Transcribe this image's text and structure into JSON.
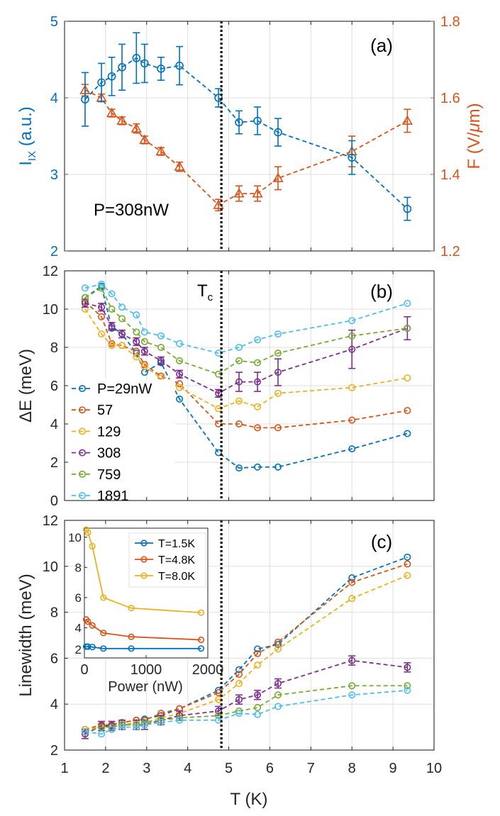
{
  "colors": {
    "blue": "#0072BD",
    "orange": "#D95319",
    "yellow": "#EDB120",
    "purple": "#7E2F8E",
    "green": "#77AC30",
    "cyan": "#4DBEEE",
    "axis": "#262626",
    "grid": "#DFDFDF"
  },
  "chart_data": [
    {
      "id": "a",
      "type": "line",
      "panel_label": "(a)",
      "annotation": "P=308nW",
      "xlim": [
        1,
        10
      ],
      "ylim": [
        2,
        5
      ],
      "yticks": [
        2,
        3,
        4,
        5
      ],
      "y2lim": [
        1.2,
        1.8
      ],
      "y2ticks": [
        1.2,
        1.4,
        1.6,
        1.8
      ],
      "ylabel_main": "I",
      "ylabel_sub": "IX",
      "ylabel_unit": " (a.u.)",
      "y2label_main": "F (V/",
      "y2label_mu": "μ",
      "y2label_end": "m)",
      "grid": true,
      "series": [
        {
          "name": "I_IX",
          "axis": "left",
          "color": "blue",
          "marker": "circle",
          "x": [
            1.5,
            1.9,
            2.15,
            2.4,
            2.75,
            2.95,
            3.35,
            3.8,
            4.75,
            5.25,
            5.7,
            6.2,
            8.0,
            9.35
          ],
          "y": [
            3.98,
            4.2,
            4.28,
            4.4,
            4.52,
            4.45,
            4.38,
            4.42,
            4.0,
            3.68,
            3.7,
            3.55,
            3.22,
            2.55
          ],
          "err": [
            0.35,
            0.25,
            0.25,
            0.3,
            0.33,
            0.25,
            0.15,
            0.25,
            0.12,
            0.15,
            0.18,
            0.18,
            0.22,
            0.15
          ]
        },
        {
          "name": "F",
          "axis": "right",
          "color": "orange",
          "marker": "triangle",
          "x": [
            1.5,
            1.9,
            2.15,
            2.4,
            2.75,
            2.95,
            3.35,
            3.8,
            4.75,
            5.25,
            5.7,
            6.2,
            8.0,
            9.35
          ],
          "y": [
            1.62,
            1.6,
            1.56,
            1.54,
            1.52,
            1.49,
            1.46,
            1.42,
            1.32,
            1.35,
            1.35,
            1.39,
            1.46,
            1.54
          ],
          "err": [
            0.015,
            0.01,
            0.01,
            0.01,
            0.012,
            0.01,
            0.01,
            0.012,
            0.015,
            0.02,
            0.02,
            0.03,
            0.04,
            0.03
          ]
        }
      ]
    },
    {
      "id": "b",
      "type": "line",
      "panel_label": "(b)",
      "tc_main": "T",
      "tc_sub": "c",
      "xlim": [
        1,
        10
      ],
      "ylim": [
        0,
        12
      ],
      "yticks": [
        0,
        2,
        4,
        6,
        8,
        10,
        12
      ],
      "ylabel": "ΔE (meV)",
      "grid": true,
      "legend_position": "bottom-left",
      "series": [
        {
          "name": "P=29nW",
          "color": "blue",
          "x": [
            1.5,
            1.9,
            2.15,
            2.4,
            2.75,
            2.95,
            3.35,
            3.8,
            4.75,
            5.25,
            5.7,
            6.2,
            8.0,
            9.35
          ],
          "y": [
            10.6,
            11.2,
            9.0,
            8.7,
            7.7,
            6.7,
            7.2,
            5.3,
            2.5,
            1.7,
            1.75,
            1.75,
            2.7,
            3.5
          ],
          "err": [
            0,
            0,
            0,
            0,
            0,
            0,
            0,
            0,
            0,
            0,
            0,
            0,
            0,
            0
          ]
        },
        {
          "name": " 57",
          "color": "orange",
          "x": [
            1.5,
            1.9,
            2.15,
            2.4,
            2.75,
            2.95,
            3.35,
            3.8,
            4.75,
            5.25,
            5.7,
            6.2,
            8.0,
            9.35
          ],
          "y": [
            10.4,
            9.6,
            8.2,
            8.1,
            7.8,
            7.1,
            6.5,
            6.1,
            4.0,
            4.0,
            3.8,
            3.8,
            4.2,
            4.7
          ],
          "err": [
            0,
            0,
            0,
            0,
            0,
            0,
            0,
            0,
            0,
            0,
            0,
            0,
            0,
            0
          ]
        },
        {
          "name": "129",
          "color": "yellow",
          "x": [
            1.5,
            1.9,
            2.15,
            2.4,
            2.75,
            2.95,
            3.35,
            3.8,
            4.75,
            5.25,
            5.7,
            6.2,
            8.0,
            9.35
          ],
          "y": [
            10.0,
            8.7,
            8.1,
            8.1,
            7.5,
            7.0,
            6.4,
            5.9,
            4.8,
            5.2,
            4.9,
            5.6,
            5.9,
            6.4
          ],
          "err": [
            0,
            0,
            0,
            0,
            0,
            0,
            0,
            0,
            0,
            0,
            0,
            0,
            0,
            0
          ]
        },
        {
          "name": "308",
          "color": "purple",
          "x": [
            1.5,
            1.9,
            2.15,
            2.4,
            2.75,
            2.95,
            3.35,
            3.8,
            4.75,
            5.25,
            5.7,
            6.2,
            8.0,
            9.35
          ],
          "y": [
            10.3,
            10.1,
            9.1,
            8.7,
            8.3,
            7.8,
            7.3,
            6.6,
            5.6,
            6.2,
            6.2,
            6.7,
            7.9,
            9.0
          ],
          "err": [
            0.2,
            0.2,
            0.2,
            0.2,
            0.2,
            0.2,
            0.2,
            0.2,
            0.2,
            0.5,
            0.5,
            0.7,
            1.0,
            0.6
          ]
        },
        {
          "name": "759",
          "color": "green",
          "x": [
            1.5,
            1.9,
            2.15,
            2.4,
            2.75,
            2.95,
            3.35,
            3.8,
            4.75,
            5.25,
            5.7,
            6.2,
            8.0,
            9.35
          ],
          "y": [
            10.6,
            11.1,
            10.0,
            9.5,
            8.8,
            8.3,
            8.0,
            7.3,
            6.6,
            7.3,
            7.2,
            7.7,
            8.6,
            9.0
          ],
          "err": [
            0,
            0,
            0,
            0,
            0,
            0,
            0,
            0,
            0,
            0,
            0,
            0,
            0,
            0
          ]
        },
        {
          "name": "1891",
          "color": "cyan",
          "x": [
            1.5,
            1.9,
            2.15,
            2.4,
            2.75,
            2.95,
            3.35,
            3.8,
            4.75,
            5.25,
            5.7,
            6.2,
            8.0,
            9.35
          ],
          "y": [
            11.1,
            11.3,
            10.8,
            10.1,
            9.7,
            8.8,
            8.6,
            8.2,
            7.7,
            8.0,
            8.4,
            8.7,
            9.4,
            10.3
          ],
          "err": [
            0,
            0,
            0,
            0,
            0,
            0,
            0,
            0,
            0,
            0,
            0,
            0,
            0,
            0
          ]
        }
      ]
    },
    {
      "id": "c",
      "type": "line",
      "panel_label": "(c)",
      "xlim": [
        1,
        10
      ],
      "xticks": [
        1,
        2,
        3,
        4,
        5,
        6,
        7,
        8,
        9,
        10
      ],
      "ylim": [
        2,
        12
      ],
      "yticks": [
        2,
        4,
        6,
        8,
        10,
        12
      ],
      "xlabel": "T (K)",
      "ylabel": "Linewidth (meV)",
      "grid": true,
      "series": [
        {
          "name": "P=29nW",
          "color": "blue",
          "x": [
            1.5,
            1.9,
            2.15,
            2.4,
            2.75,
            2.95,
            3.35,
            3.8,
            4.75,
            5.25,
            5.7,
            6.2,
            8.0,
            9.35
          ],
          "y": [
            2.8,
            3.0,
            3.1,
            3.2,
            3.3,
            3.35,
            3.5,
            3.8,
            4.6,
            5.5,
            6.4,
            6.6,
            9.5,
            10.4
          ],
          "err": [
            0,
            0,
            0,
            0,
            0,
            0,
            0,
            0,
            0,
            0,
            0,
            0,
            0,
            0
          ]
        },
        {
          "name": "57",
          "color": "orange",
          "x": [
            1.5,
            1.9,
            2.15,
            2.4,
            2.75,
            2.95,
            3.35,
            3.8,
            4.75,
            5.25,
            5.7,
            6.2,
            8.0,
            9.35
          ],
          "y": [
            2.9,
            3.1,
            3.1,
            3.2,
            3.3,
            3.3,
            3.6,
            3.8,
            4.5,
            5.3,
            6.2,
            6.7,
            9.3,
            10.1
          ],
          "err": [
            0,
            0,
            0,
            0,
            0,
            0,
            0,
            0,
            0,
            0,
            0,
            0,
            0,
            0
          ]
        },
        {
          "name": "129",
          "color": "yellow",
          "x": [
            1.5,
            1.9,
            2.15,
            2.4,
            2.75,
            2.95,
            3.35,
            3.8,
            4.75,
            5.25,
            5.7,
            6.2,
            8.0,
            9.35
          ],
          "y": [
            2.9,
            3.0,
            3.0,
            3.1,
            3.2,
            3.2,
            3.4,
            3.6,
            4.2,
            4.9,
            5.7,
            6.4,
            8.6,
            9.6
          ],
          "err": [
            0,
            0,
            0,
            0,
            0,
            0,
            0,
            0,
            0,
            0,
            0,
            0,
            0,
            0
          ]
        },
        {
          "name": "308",
          "color": "purple",
          "x": [
            1.5,
            1.9,
            2.15,
            2.4,
            2.75,
            2.95,
            3.35,
            3.8,
            4.75,
            5.25,
            5.7,
            6.2,
            8.0,
            9.35
          ],
          "y": [
            2.7,
            3.05,
            3.05,
            3.1,
            3.1,
            3.1,
            3.3,
            3.5,
            3.7,
            4.2,
            4.4,
            4.9,
            5.9,
            5.6
          ],
          "err": [
            0.2,
            0.2,
            0.2,
            0.2,
            0.2,
            0.2,
            0.2,
            0.2,
            0.2,
            0.2,
            0.2,
            0.2,
            0.2,
            0.2
          ]
        },
        {
          "name": "759",
          "color": "green",
          "x": [
            1.5,
            1.9,
            2.15,
            2.4,
            2.75,
            2.95,
            3.35,
            3.8,
            4.75,
            5.25,
            5.7,
            6.2,
            8.0,
            9.35
          ],
          "y": [
            2.8,
            3.0,
            3.0,
            3.1,
            3.1,
            3.2,
            3.3,
            3.4,
            3.5,
            3.7,
            3.85,
            4.4,
            4.8,
            4.8
          ],
          "err": [
            0,
            0,
            0,
            0,
            0,
            0,
            0,
            0,
            0,
            0,
            0,
            0,
            0,
            0
          ]
        },
        {
          "name": "1891",
          "color": "cyan",
          "x": [
            1.5,
            1.9,
            2.15,
            2.4,
            2.75,
            2.95,
            3.35,
            3.8,
            4.75,
            5.25,
            5.7,
            6.2,
            8.0,
            9.35
          ],
          "y": [
            2.8,
            2.7,
            2.9,
            3.0,
            3.0,
            3.1,
            3.2,
            3.3,
            3.3,
            3.6,
            3.55,
            3.9,
            4.4,
            4.6
          ],
          "err": [
            0,
            0,
            0,
            0,
            0,
            0,
            0,
            0,
            0,
            0,
            0,
            0,
            0,
            0
          ]
        }
      ],
      "inset": {
        "xlim": [
          0,
          2000
        ],
        "xticks": [
          0,
          1000,
          2000
        ],
        "ylim": [
          2,
          10.6
        ],
        "yticks": [
          4,
          6,
          8,
          10
        ],
        "extra_tick": 2,
        "xlabel": "Power (nW)",
        "legend_position": "top-right",
        "series": [
          {
            "name": "T=1.5K",
            "color": "blue",
            "x": [
              29,
              57,
              129,
              308,
              759,
              1891
            ],
            "y": [
              2.75,
              2.75,
              2.72,
              2.62,
              2.62,
              2.62
            ]
          },
          {
            "name": "T=4.8K",
            "color": "orange",
            "x": [
              29,
              57,
              129,
              308,
              759,
              1891
            ],
            "y": [
              4.55,
              4.4,
              4.15,
              3.65,
              3.4,
              3.2
            ]
          },
          {
            "name": "T=8.0K",
            "color": "yellow",
            "x": [
              29,
              57,
              129,
              308,
              759,
              1891
            ],
            "y": [
              10.5,
              10.3,
              9.4,
              6.0,
              5.3,
              5.0
            ]
          }
        ]
      }
    }
  ]
}
